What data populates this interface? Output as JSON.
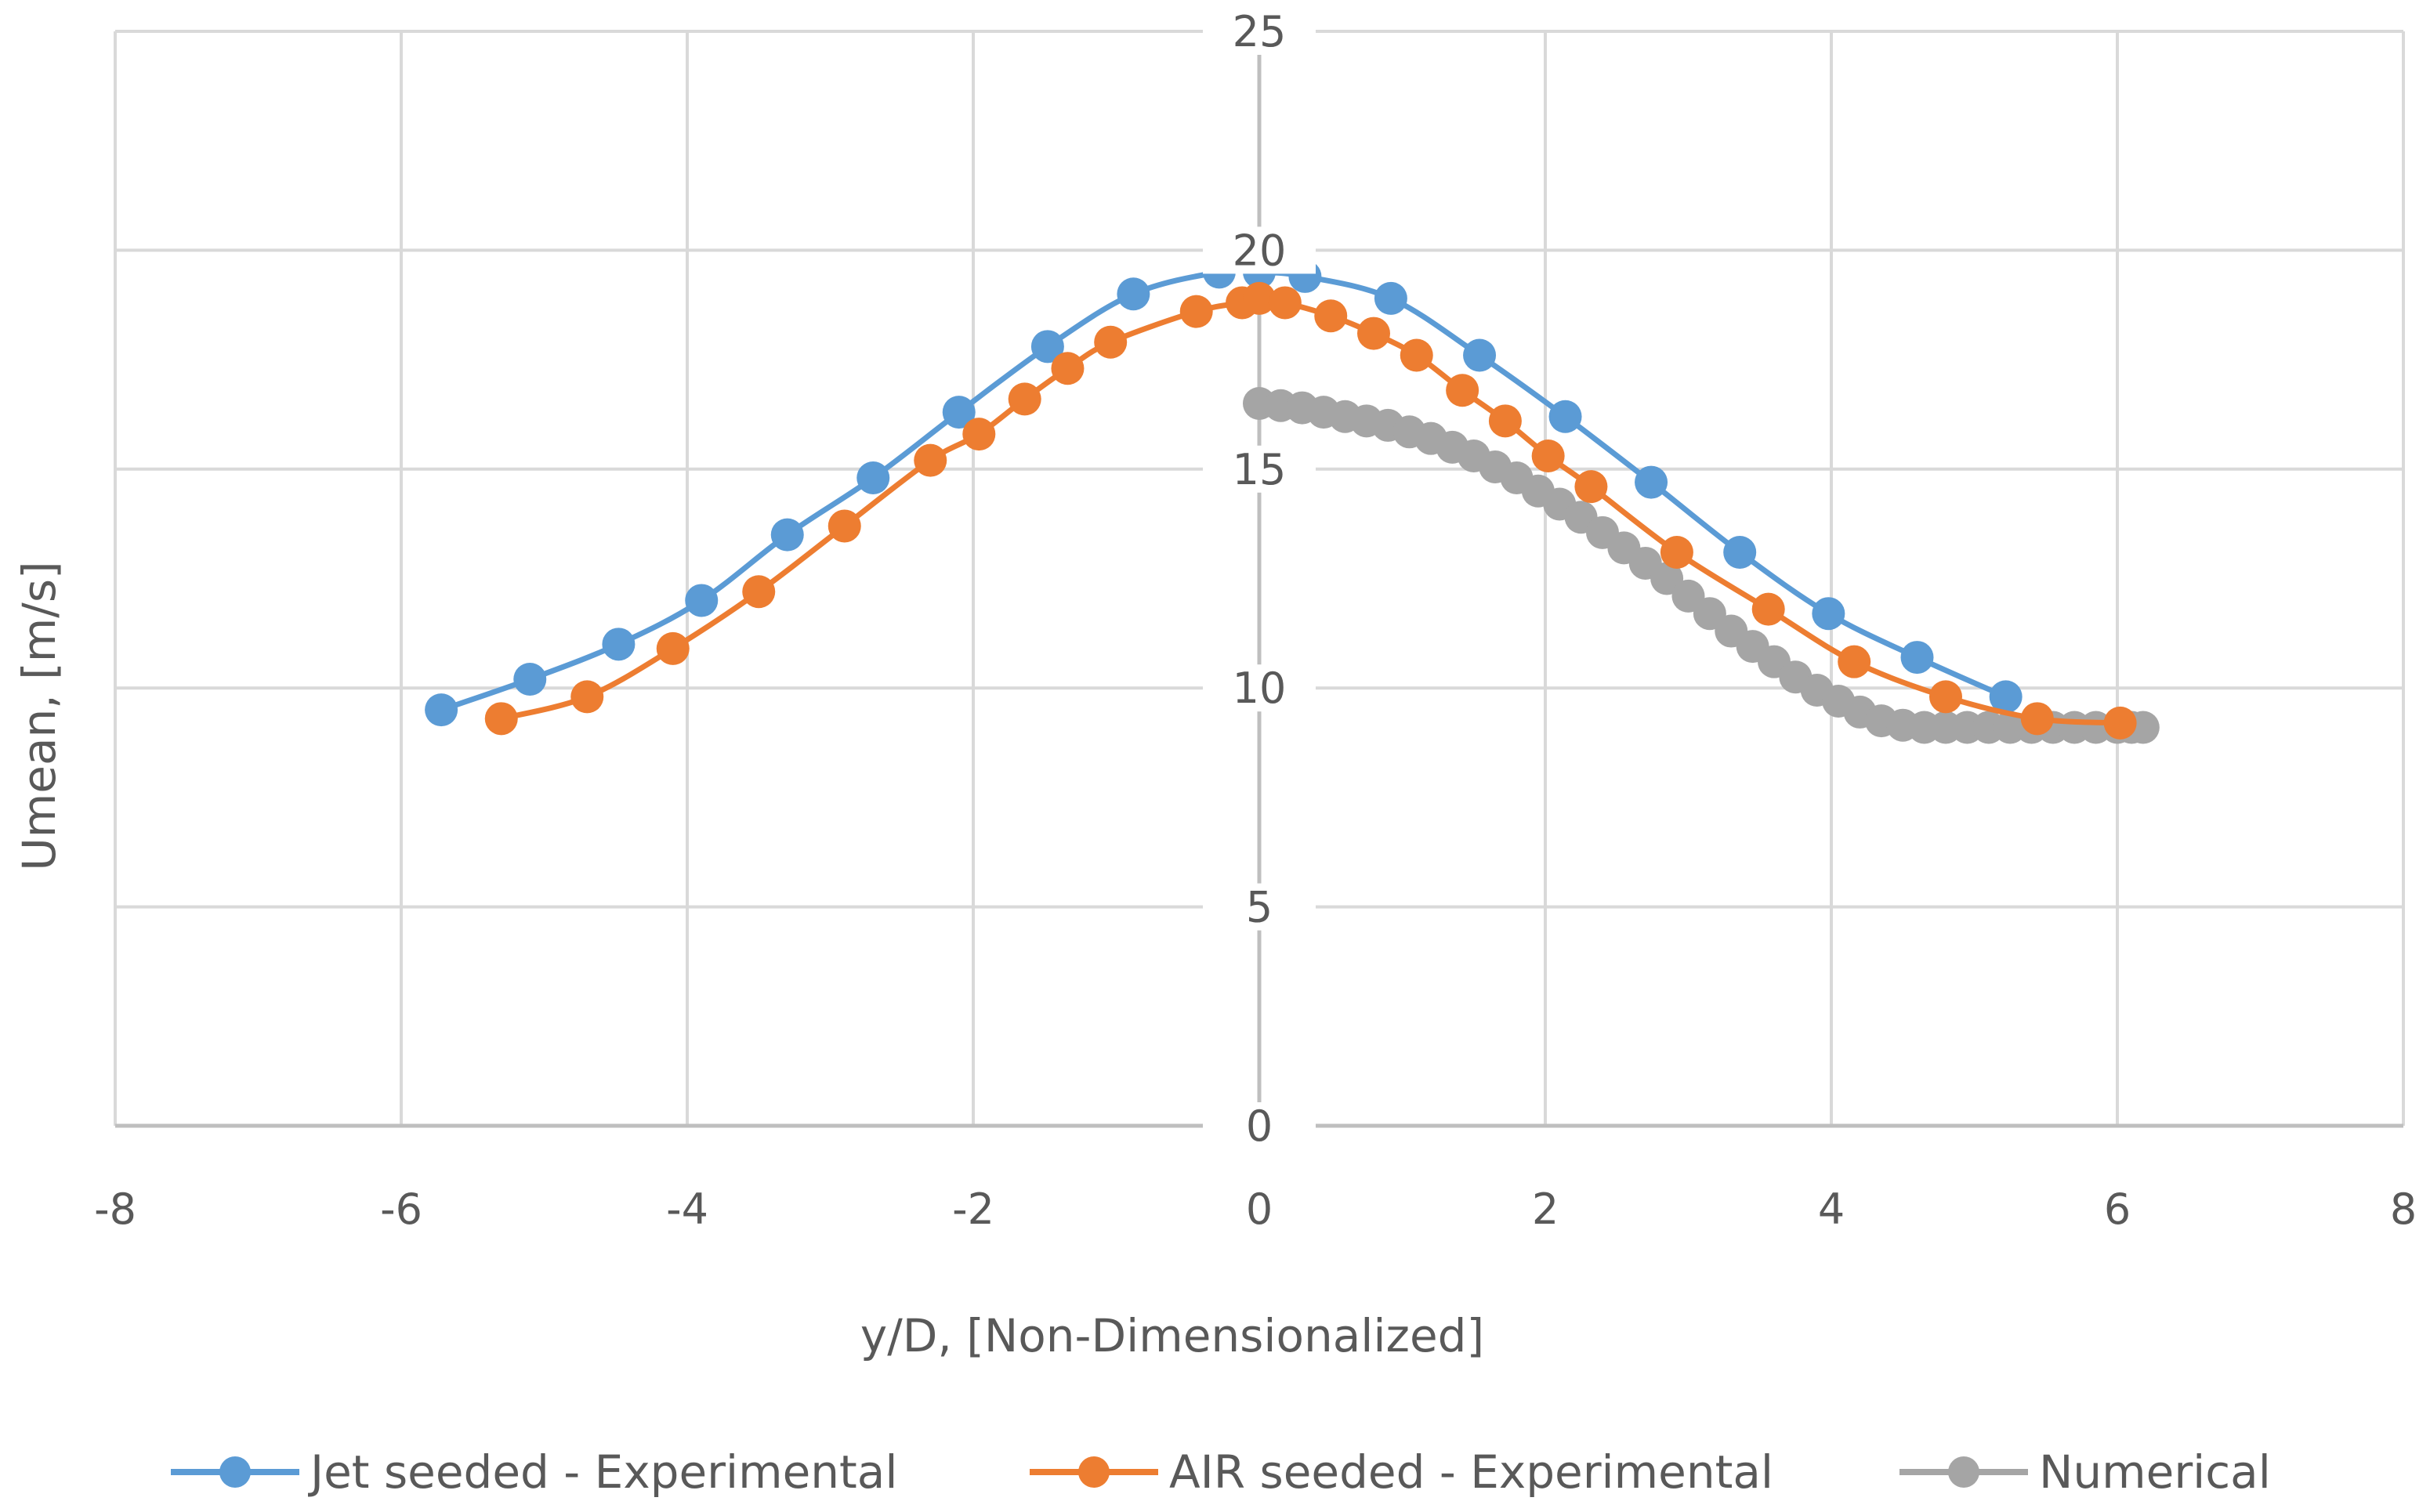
{
  "chart_data": {
    "type": "scatter",
    "title": "",
    "xlabel": "y/D, [Non-Dimensionalized]",
    "ylabel": "Umean, [m/s]",
    "xlim": [
      -8,
      8
    ],
    "ylim": [
      0,
      25
    ],
    "x_ticks": [
      "-8",
      "-6",
      "-4",
      "-2",
      "0",
      "2",
      "4",
      "6",
      "8"
    ],
    "y_ticks": [
      "0",
      "5",
      "10",
      "15",
      "20",
      "25"
    ],
    "grid": true,
    "legend_position": "bottom",
    "series": [
      {
        "name": "Jet seeded - Experimental",
        "color": "#5B9BD5",
        "x": [
          -5.72,
          -5.1,
          -4.48,
          -3.9,
          -3.3,
          -2.7,
          -2.1,
          -1.48,
          -0.88,
          -0.28,
          0.0,
          0.32,
          0.92,
          1.54,
          2.14,
          2.74,
          3.36,
          3.98,
          4.6,
          5.22
        ],
        "y": [
          9.5,
          10.2,
          11.0,
          12.0,
          13.5,
          14.8,
          16.3,
          17.8,
          19.0,
          19.5,
          19.5,
          19.4,
          18.9,
          17.6,
          16.2,
          14.7,
          13.1,
          11.7,
          10.7,
          9.8
        ]
      },
      {
        "name": "AIR seeded - Experimental",
        "color": "#ED7D31",
        "x": [
          -5.3,
          -4.7,
          -4.1,
          -3.5,
          -2.9,
          -2.3,
          -1.96,
          -1.64,
          -1.34,
          -1.04,
          -0.44,
          -0.12,
          0.0,
          0.18,
          0.5,
          0.8,
          1.1,
          1.42,
          1.72,
          2.02,
          2.32,
          2.92,
          3.56,
          4.16,
          4.8,
          5.44,
          6.02
        ],
        "y": [
          9.3,
          9.8,
          10.9,
          12.2,
          13.7,
          15.2,
          15.8,
          16.6,
          17.3,
          17.9,
          18.6,
          18.8,
          18.9,
          18.8,
          18.5,
          18.1,
          17.6,
          16.8,
          16.1,
          15.3,
          14.6,
          13.1,
          11.8,
          10.6,
          9.8,
          9.3,
          9.2
        ]
      },
      {
        "name": "Numerical",
        "color": "#A5A5A5",
        "x": [
          0.0,
          0.15,
          0.3,
          0.45,
          0.6,
          0.75,
          0.9,
          1.05,
          1.2,
          1.35,
          1.5,
          1.65,
          1.8,
          1.95,
          2.1,
          2.25,
          2.4,
          2.55,
          2.7,
          2.85,
          3.0,
          3.15,
          3.3,
          3.45,
          3.6,
          3.75,
          3.9,
          4.05,
          4.2,
          4.35,
          4.5,
          4.65,
          4.8,
          4.95,
          5.1,
          5.25,
          5.4,
          5.55,
          5.7,
          5.85,
          6.0,
          6.1,
          6.18
        ],
        "y": [
          16.5,
          16.45,
          16.4,
          16.3,
          16.2,
          16.1,
          16.0,
          15.85,
          15.7,
          15.5,
          15.3,
          15.05,
          14.8,
          14.5,
          14.2,
          13.9,
          13.55,
          13.2,
          12.85,
          12.5,
          12.1,
          11.7,
          11.3,
          10.95,
          10.6,
          10.25,
          9.95,
          9.7,
          9.45,
          9.25,
          9.15,
          9.1,
          9.1,
          9.1,
          9.1,
          9.1,
          9.1,
          9.1,
          9.1,
          9.1,
          9.1,
          9.1,
          9.1
        ]
      }
    ]
  }
}
